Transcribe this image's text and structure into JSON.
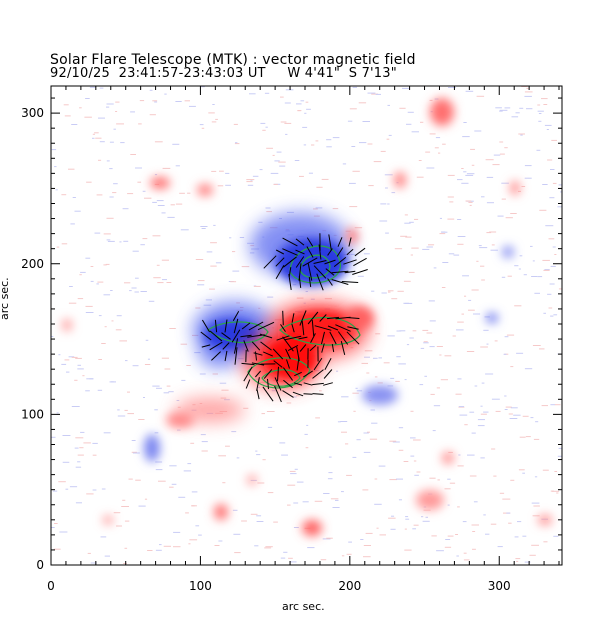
{
  "header": {
    "title": "Solar Flare Telescope (MTK) : vector magnetic field",
    "subtitle": "92/10/25  23:41:57-23:43:03 UT     W 4'41\"  S 7'13\""
  },
  "axes": {
    "xlabel": "arc sec.",
    "ylabel": "arc sec.",
    "xlim": [
      0,
      342
    ],
    "ylim": [
      0,
      318
    ],
    "xticks": [
      "0",
      "100",
      "200",
      "300"
    ],
    "yticks": [
      "0",
      "100",
      "200",
      "300"
    ]
  },
  "colors": {
    "positive": "#ff2020",
    "negative": "#3b4bdc",
    "contour": "#2aa64a",
    "arrows": "#000000"
  }
}
